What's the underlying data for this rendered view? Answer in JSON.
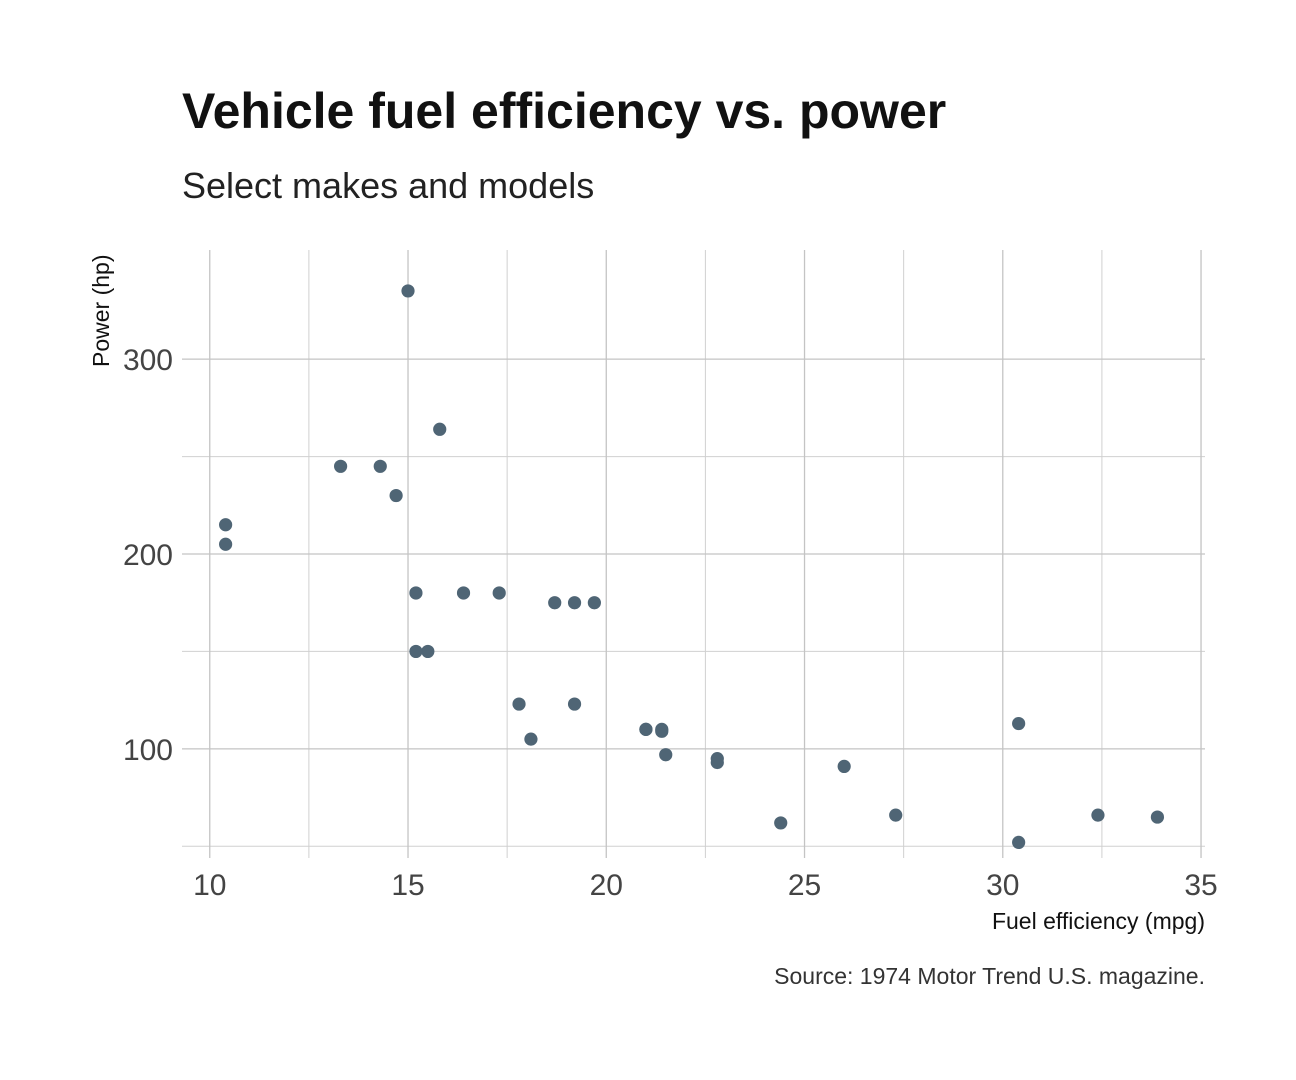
{
  "chart_data": {
    "type": "scatter",
    "title": "Vehicle fuel efficiency vs. power",
    "subtitle": "Select makes and models",
    "xlabel": "Fuel efficiency (mpg)",
    "ylabel": "Power (hp)",
    "caption": "Source: 1974 Motor Trend U.S. magazine.",
    "xlim": [
      9.3,
      35.1
    ],
    "ylim": [
      44,
      356
    ],
    "x_major_ticks": [
      10,
      15,
      20,
      25,
      30,
      35
    ],
    "x_minor_ticks": [
      12.5,
      17.5,
      22.5,
      27.5,
      32.5
    ],
    "y_major_ticks": [
      100,
      200,
      300
    ],
    "y_minor_ticks": [
      50,
      150,
      250
    ],
    "grid": true,
    "point_color": "#4f6575",
    "x": [
      21.0,
      21.0,
      22.8,
      21.4,
      18.7,
      18.1,
      14.3,
      24.4,
      22.8,
      19.2,
      17.8,
      16.4,
      17.3,
      15.2,
      10.4,
      10.4,
      14.7,
      32.4,
      30.4,
      33.9,
      21.5,
      15.5,
      15.2,
      13.3,
      19.2,
      27.3,
      26.0,
      30.4,
      15.8,
      19.7,
      15.0,
      21.4
    ],
    "y": [
      110,
      110,
      93,
      110,
      175,
      105,
      245,
      62,
      95,
      123,
      123,
      180,
      180,
      180,
      205,
      215,
      230,
      66,
      52,
      65,
      97,
      150,
      150,
      245,
      175,
      66,
      91,
      113,
      264,
      175,
      335,
      109
    ]
  }
}
